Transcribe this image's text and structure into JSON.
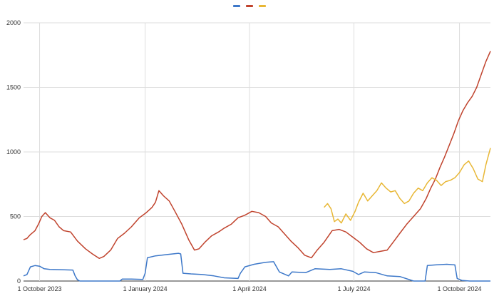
{
  "chart_data": {
    "type": "line",
    "title": "",
    "xlabel": "",
    "ylabel": "",
    "ylim": [
      0,
      2000
    ],
    "xlim": [
      "2023-09-17",
      "2024-10-28"
    ],
    "y_ticks": [
      0,
      500,
      1000,
      1500,
      2000
    ],
    "x_ticks": [
      {
        "date": "2023-10-01",
        "label": "1 October 2023"
      },
      {
        "date": "2024-01-01",
        "label": "1 January 2024"
      },
      {
        "date": "2024-04-01",
        "label": "1 April 2024"
      },
      {
        "date": "2024-07-01",
        "label": "1 July 2024"
      },
      {
        "date": "2024-10-01",
        "label": "1 October 2024"
      }
    ],
    "grid": true,
    "legend": {
      "position": "top-center"
    },
    "series": [
      {
        "color": "#3d78c9",
        "points": [
          [
            "2023-09-17",
            40
          ],
          [
            "2023-09-20",
            50
          ],
          [
            "2023-09-23",
            110
          ],
          [
            "2023-09-27",
            120
          ],
          [
            "2023-10-01",
            115
          ],
          [
            "2023-10-05",
            95
          ],
          [
            "2023-10-10",
            90
          ],
          [
            "2023-10-20",
            88
          ],
          [
            "2023-10-30",
            85
          ],
          [
            "2023-11-01",
            40
          ],
          [
            "2023-11-03",
            10
          ],
          [
            "2023-11-05",
            0
          ],
          [
            "2023-12-10",
            0
          ],
          [
            "2023-12-12",
            15
          ],
          [
            "2023-12-20",
            15
          ],
          [
            "2023-12-30",
            12
          ],
          [
            "2024-01-01",
            60
          ],
          [
            "2024-01-03",
            180
          ],
          [
            "2024-01-10",
            195
          ],
          [
            "2024-01-20",
            205
          ],
          [
            "2024-01-30",
            215
          ],
          [
            "2024-02-01",
            210
          ],
          [
            "2024-02-03",
            60
          ],
          [
            "2024-02-10",
            55
          ],
          [
            "2024-02-20",
            50
          ],
          [
            "2024-03-01",
            40
          ],
          [
            "2024-03-10",
            25
          ],
          [
            "2024-03-22",
            20
          ],
          [
            "2024-03-24",
            60
          ],
          [
            "2024-03-28",
            110
          ],
          [
            "2024-04-05",
            130
          ],
          [
            "2024-04-15",
            145
          ],
          [
            "2024-04-22",
            150
          ],
          [
            "2024-04-27",
            70
          ],
          [
            "2024-05-05",
            40
          ],
          [
            "2024-05-08",
            70
          ],
          [
            "2024-05-20",
            65
          ],
          [
            "2024-05-28",
            95
          ],
          [
            "2024-06-10",
            90
          ],
          [
            "2024-06-20",
            95
          ],
          [
            "2024-06-30",
            75
          ],
          [
            "2024-07-05",
            50
          ],
          [
            "2024-07-10",
            70
          ],
          [
            "2024-07-20",
            65
          ],
          [
            "2024-07-30",
            40
          ],
          [
            "2024-08-10",
            35
          ],
          [
            "2024-08-22",
            0
          ],
          [
            "2024-09-01",
            0
          ],
          [
            "2024-09-03",
            120
          ],
          [
            "2024-09-10",
            125
          ],
          [
            "2024-09-20",
            130
          ],
          [
            "2024-09-27",
            125
          ],
          [
            "2024-09-29",
            20
          ],
          [
            "2024-10-03",
            5
          ],
          [
            "2024-10-10",
            0
          ],
          [
            "2024-10-28",
            0
          ]
        ]
      },
      {
        "color": "#c0432d",
        "points": [
          [
            "2023-09-17",
            320
          ],
          [
            "2023-09-20",
            330
          ],
          [
            "2023-09-23",
            360
          ],
          [
            "2023-09-27",
            390
          ],
          [
            "2023-09-30",
            440
          ],
          [
            "2023-10-03",
            500
          ],
          [
            "2023-10-06",
            530
          ],
          [
            "2023-10-10",
            490
          ],
          [
            "2023-10-14",
            470
          ],
          [
            "2023-10-18",
            420
          ],
          [
            "2023-10-22",
            390
          ],
          [
            "2023-10-28",
            380
          ],
          [
            "2023-11-03",
            310
          ],
          [
            "2023-11-10",
            250
          ],
          [
            "2023-11-16",
            210
          ],
          [
            "2023-11-22",
            175
          ],
          [
            "2023-11-26",
            190
          ],
          [
            "2023-12-02",
            240
          ],
          [
            "2023-12-08",
            330
          ],
          [
            "2023-12-14",
            370
          ],
          [
            "2023-12-20",
            420
          ],
          [
            "2023-12-27",
            490
          ],
          [
            "2024-01-02",
            530
          ],
          [
            "2024-01-07",
            570
          ],
          [
            "2024-01-10",
            610
          ],
          [
            "2024-01-13",
            700
          ],
          [
            "2024-01-17",
            660
          ],
          [
            "2024-01-22",
            620
          ],
          [
            "2024-01-27",
            540
          ],
          [
            "2024-02-02",
            440
          ],
          [
            "2024-02-08",
            320
          ],
          [
            "2024-02-13",
            240
          ],
          [
            "2024-02-17",
            250
          ],
          [
            "2024-02-22",
            300
          ],
          [
            "2024-02-28",
            350
          ],
          [
            "2024-03-05",
            380
          ],
          [
            "2024-03-10",
            410
          ],
          [
            "2024-03-16",
            440
          ],
          [
            "2024-03-22",
            490
          ],
          [
            "2024-03-28",
            510
          ],
          [
            "2024-04-03",
            540
          ],
          [
            "2024-04-09",
            530
          ],
          [
            "2024-04-15",
            500
          ],
          [
            "2024-04-20",
            450
          ],
          [
            "2024-04-26",
            420
          ],
          [
            "2024-05-01",
            370
          ],
          [
            "2024-05-07",
            310
          ],
          [
            "2024-05-13",
            260
          ],
          [
            "2024-05-19",
            200
          ],
          [
            "2024-05-25",
            180
          ],
          [
            "2024-05-30",
            240
          ],
          [
            "2024-06-05",
            300
          ],
          [
            "2024-06-12",
            390
          ],
          [
            "2024-06-18",
            400
          ],
          [
            "2024-06-24",
            380
          ],
          [
            "2024-06-30",
            340
          ],
          [
            "2024-07-06",
            300
          ],
          [
            "2024-07-12",
            250
          ],
          [
            "2024-07-18",
            220
          ],
          [
            "2024-07-24",
            230
          ],
          [
            "2024-07-30",
            240
          ],
          [
            "2024-08-05",
            310
          ],
          [
            "2024-08-10",
            370
          ],
          [
            "2024-08-16",
            440
          ],
          [
            "2024-08-22",
            500
          ],
          [
            "2024-08-28",
            560
          ],
          [
            "2024-09-02",
            640
          ],
          [
            "2024-09-06",
            720
          ],
          [
            "2024-09-10",
            790
          ],
          [
            "2024-09-14",
            880
          ],
          [
            "2024-09-18",
            960
          ],
          [
            "2024-09-22",
            1050
          ],
          [
            "2024-09-26",
            1140
          ],
          [
            "2024-09-30",
            1240
          ],
          [
            "2024-10-04",
            1320
          ],
          [
            "2024-10-08",
            1380
          ],
          [
            "2024-10-12",
            1430
          ],
          [
            "2024-10-16",
            1500
          ],
          [
            "2024-10-20",
            1600
          ],
          [
            "2024-10-24",
            1700
          ],
          [
            "2024-10-28",
            1780
          ]
        ]
      },
      {
        "color": "#e8b735",
        "points": [
          [
            "2024-06-05",
            570
          ],
          [
            "2024-06-08",
            600
          ],
          [
            "2024-06-11",
            560
          ],
          [
            "2024-06-14",
            460
          ],
          [
            "2024-06-17",
            480
          ],
          [
            "2024-06-20",
            450
          ],
          [
            "2024-06-24",
            520
          ],
          [
            "2024-06-28",
            470
          ],
          [
            "2024-07-02",
            540
          ],
          [
            "2024-07-05",
            610
          ],
          [
            "2024-07-09",
            680
          ],
          [
            "2024-07-13",
            620
          ],
          [
            "2024-07-17",
            660
          ],
          [
            "2024-07-21",
            700
          ],
          [
            "2024-07-25",
            760
          ],
          [
            "2024-07-29",
            720
          ],
          [
            "2024-08-02",
            690
          ],
          [
            "2024-08-06",
            700
          ],
          [
            "2024-08-10",
            640
          ],
          [
            "2024-08-14",
            600
          ],
          [
            "2024-08-18",
            620
          ],
          [
            "2024-08-22",
            680
          ],
          [
            "2024-08-26",
            720
          ],
          [
            "2024-08-30",
            700
          ],
          [
            "2024-09-03",
            760
          ],
          [
            "2024-09-07",
            800
          ],
          [
            "2024-09-11",
            780
          ],
          [
            "2024-09-15",
            740
          ],
          [
            "2024-09-19",
            770
          ],
          [
            "2024-09-23",
            780
          ],
          [
            "2024-09-27",
            800
          ],
          [
            "2024-10-01",
            840
          ],
          [
            "2024-10-05",
            900
          ],
          [
            "2024-10-09",
            930
          ],
          [
            "2024-10-13",
            870
          ],
          [
            "2024-10-17",
            790
          ],
          [
            "2024-10-21",
            770
          ],
          [
            "2024-10-24",
            900
          ],
          [
            "2024-10-28",
            1030
          ]
        ]
      }
    ]
  }
}
